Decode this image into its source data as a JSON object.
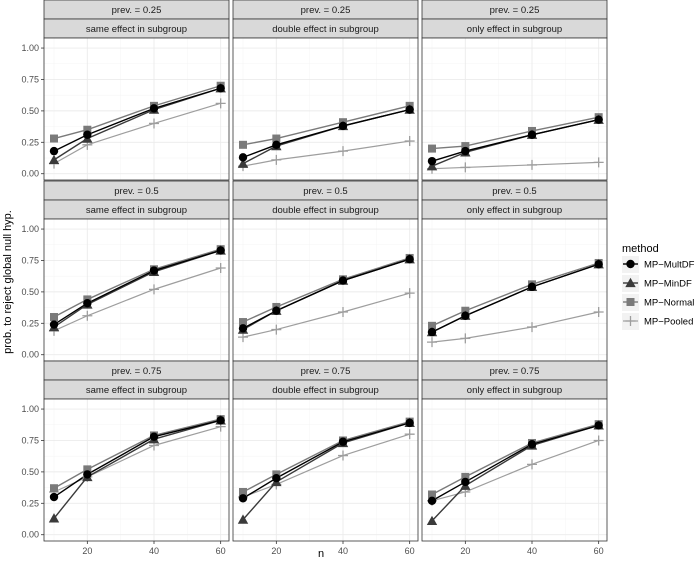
{
  "chart_data": {
    "type": "line",
    "xlabel": "n",
    "ylabel": "prob. to reject global null hyp.",
    "x": [
      10,
      20,
      40,
      60
    ],
    "x_ticks": [
      "20",
      "40",
      "60"
    ],
    "x_tick_values": [
      20,
      40,
      60
    ],
    "y_ticks": [
      "0.00",
      "0.25",
      "0.50",
      "0.75",
      "1.00"
    ],
    "y_tick_values": [
      0,
      0.25,
      0.5,
      0.75,
      1.0
    ],
    "xlim": [
      7,
      62.5
    ],
    "ylim": [
      -0.05,
      1.08
    ],
    "legend": {
      "title": "method",
      "position": "right",
      "entries": [
        {
          "label": "MP−MultDF",
          "color": "#000000",
          "shape": "circle"
        },
        {
          "label": "MP−MinDF",
          "color": "#3a3a3a",
          "shape": "triangle"
        },
        {
          "label": "MP−Normal",
          "color": "#7a7a7a",
          "shape": "square"
        },
        {
          "label": "MP−Pooled",
          "color": "#9e9e9e",
          "shape": "cross"
        }
      ]
    },
    "panels": [
      {
        "prev": "prev. = 0.25",
        "effect": "same effect in subgroup",
        "series": [
          {
            "name": "MP−MultDF",
            "values": [
              0.18,
              0.31,
              0.52,
              0.68
            ]
          },
          {
            "name": "MP−MinDF",
            "values": [
              0.11,
              0.28,
              0.51,
              0.68
            ]
          },
          {
            "name": "MP−Normal",
            "values": [
              0.28,
              0.35,
              0.54,
              0.7
            ]
          },
          {
            "name": "MP−Pooled",
            "values": [
              0.08,
              0.23,
              0.4,
              0.56
            ]
          }
        ]
      },
      {
        "prev": "prev. = 0.25",
        "effect": "double effect in subgroup",
        "series": [
          {
            "name": "MP−MultDF",
            "values": [
              0.13,
              0.23,
              0.38,
              0.51
            ]
          },
          {
            "name": "MP−MinDF",
            "values": [
              0.08,
              0.22,
              0.38,
              0.51
            ]
          },
          {
            "name": "MP−Normal",
            "values": [
              0.23,
              0.28,
              0.41,
              0.54
            ]
          },
          {
            "name": "MP−Pooled",
            "values": [
              0.06,
              0.11,
              0.18,
              0.26
            ]
          }
        ]
      },
      {
        "prev": "prev. = 0.25",
        "effect": "only effect in subgroup",
        "series": [
          {
            "name": "MP−MultDF",
            "values": [
              0.1,
              0.18,
              0.31,
              0.43
            ]
          },
          {
            "name": "MP−MinDF",
            "values": [
              0.06,
              0.17,
              0.31,
              0.43
            ]
          },
          {
            "name": "MP−Normal",
            "values": [
              0.2,
              0.22,
              0.34,
              0.45
            ]
          },
          {
            "name": "MP−Pooled",
            "values": [
              0.04,
              0.05,
              0.07,
              0.09
            ]
          }
        ]
      },
      {
        "prev": "prev. = 0.5",
        "effect": "same effect in subgroup",
        "series": [
          {
            "name": "MP−MultDF",
            "values": [
              0.24,
              0.41,
              0.67,
              0.83
            ]
          },
          {
            "name": "MP−MinDF",
            "values": [
              0.22,
              0.4,
              0.66,
              0.83
            ]
          },
          {
            "name": "MP−Normal",
            "values": [
              0.3,
              0.44,
              0.68,
              0.84
            ]
          },
          {
            "name": "MP−Pooled",
            "values": [
              0.19,
              0.31,
              0.52,
              0.69
            ]
          }
        ]
      },
      {
        "prev": "prev. = 0.5",
        "effect": "double effect in subgroup",
        "series": [
          {
            "name": "MP−MultDF",
            "values": [
              0.21,
              0.35,
              0.59,
              0.76
            ]
          },
          {
            "name": "MP−MinDF",
            "values": [
              0.2,
              0.35,
              0.59,
              0.76
            ]
          },
          {
            "name": "MP−Normal",
            "values": [
              0.26,
              0.38,
              0.6,
              0.77
            ]
          },
          {
            "name": "MP−Pooled",
            "values": [
              0.14,
              0.2,
              0.34,
              0.49
            ]
          }
        ]
      },
      {
        "prev": "prev. = 0.5",
        "effect": "only effect in subgroup",
        "series": [
          {
            "name": "MP−MultDF",
            "values": [
              0.18,
              0.31,
              0.54,
              0.72
            ]
          },
          {
            "name": "MP−MinDF",
            "values": [
              0.18,
              0.31,
              0.54,
              0.72
            ]
          },
          {
            "name": "MP−Normal",
            "values": [
              0.23,
              0.35,
              0.56,
              0.73
            ]
          },
          {
            "name": "MP−Pooled",
            "values": [
              0.1,
              0.13,
              0.22,
              0.34
            ]
          }
        ]
      },
      {
        "prev": "prev. = 0.75",
        "effect": "same effect in subgroup",
        "series": [
          {
            "name": "MP−MultDF",
            "values": [
              0.3,
              0.48,
              0.78,
              0.91
            ]
          },
          {
            "name": "MP−MinDF",
            "values": [
              0.13,
              0.46,
              0.76,
              0.91
            ]
          },
          {
            "name": "MP−Normal",
            "values": [
              0.37,
              0.52,
              0.79,
              0.92
            ]
          },
          {
            "name": "MP−Pooled",
            "values": [
              0.34,
              0.46,
              0.71,
              0.86
            ]
          }
        ]
      },
      {
        "prev": "prev. = 0.75",
        "effect": "double effect in subgroup",
        "series": [
          {
            "name": "MP−MultDF",
            "values": [
              0.29,
              0.45,
              0.74,
              0.89
            ]
          },
          {
            "name": "MP−MinDF",
            "values": [
              0.12,
              0.42,
              0.73,
              0.89
            ]
          },
          {
            "name": "MP−Normal",
            "values": [
              0.34,
              0.48,
              0.75,
              0.9
            ]
          },
          {
            "name": "MP−Pooled",
            "values": [
              0.3,
              0.4,
              0.63,
              0.8
            ]
          }
        ]
      },
      {
        "prev": "prev. = 0.75",
        "effect": "only effect in subgroup",
        "series": [
          {
            "name": "MP−MultDF",
            "values": [
              0.27,
              0.42,
              0.72,
              0.87
            ]
          },
          {
            "name": "MP−MinDF",
            "values": [
              0.11,
              0.39,
              0.71,
              0.87
            ]
          },
          {
            "name": "MP−Normal",
            "values": [
              0.32,
              0.46,
              0.73,
              0.88
            ]
          },
          {
            "name": "MP−Pooled",
            "values": [
              0.27,
              0.34,
              0.56,
              0.75
            ]
          }
        ]
      }
    ]
  }
}
